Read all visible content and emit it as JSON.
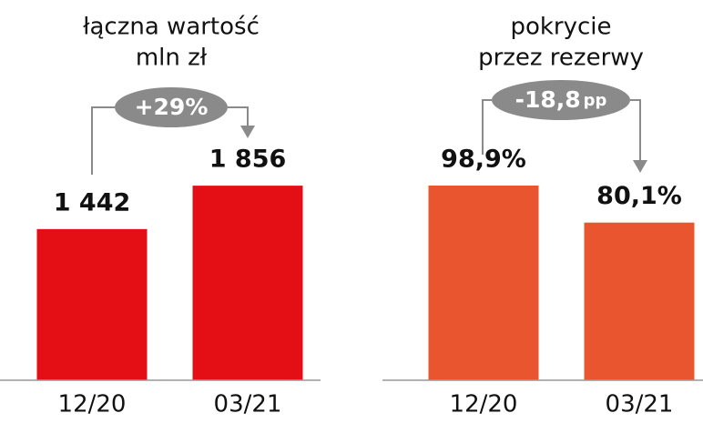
{
  "chart_data": [
    {
      "type": "bar",
      "title": "łączna wartość",
      "subtitle": "mln zł",
      "categories": [
        "12/20",
        "03/21"
      ],
      "values": [
        1442,
        1856
      ],
      "value_labels": [
        "1 442",
        "1 856"
      ],
      "color": "#e30f14",
      "ylim": [
        0,
        3280
      ],
      "annotation": "+29%"
    },
    {
      "type": "bar",
      "title": "pokrycie",
      "subtitle": "przez rezerwy",
      "categories": [
        "12/20",
        "03/21"
      ],
      "values": [
        98.9,
        80.1
      ],
      "value_labels": [
        "98,9%",
        "80,1%"
      ],
      "color": "#e8552e",
      "ylim": [
        0,
        174.7
      ],
      "annotation": "-18,8",
      "annotation_unit": "pp"
    }
  ]
}
